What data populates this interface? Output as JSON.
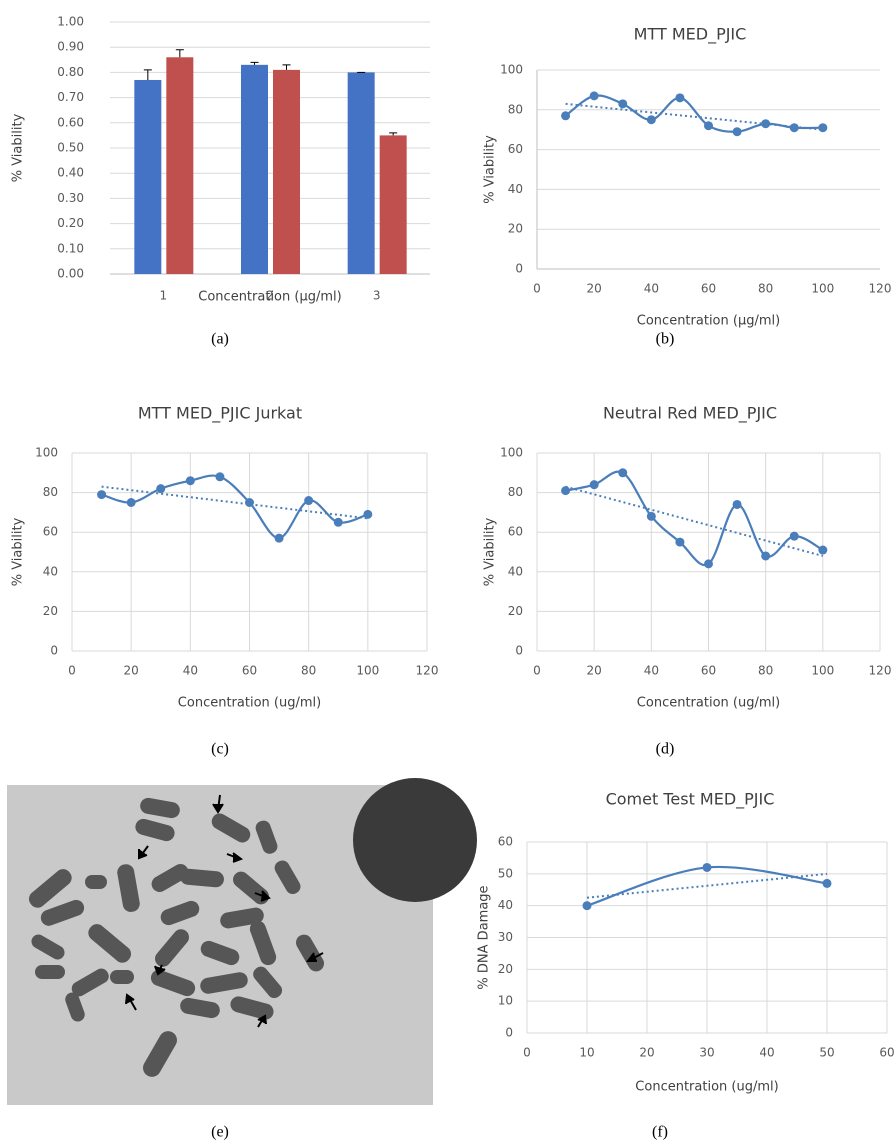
{
  "chart_data": [
    {
      "type": "bar",
      "categories": [
        "1",
        "2",
        "3"
      ],
      "series": [
        {
          "color": "#4472c4",
          "values": [
            0.77,
            0.83,
            0.8
          ],
          "errors": [
            0.04,
            0.01,
            0.0
          ]
        },
        {
          "color": "#c0504d",
          "values": [
            0.86,
            0.81,
            0.55
          ],
          "errors": [
            0.03,
            0.02,
            0.01
          ]
        }
      ],
      "ylim": [
        0,
        1
      ],
      "yticks": [
        {
          "value": 0,
          "label": "0.00"
        },
        {
          "value": 0.1,
          "label": "0.10"
        },
        {
          "value": 0.2,
          "label": "0.20"
        },
        {
          "value": 0.3,
          "label": "0.30"
        },
        {
          "value": 0.4,
          "label": "0.40"
        },
        {
          "value": 0.5,
          "label": "0.50"
        },
        {
          "value": 0.6,
          "label": "0.60"
        },
        {
          "value": 0.7,
          "label": "0.70"
        },
        {
          "value": 0.8,
          "label": "0.80"
        },
        {
          "value": 0.9,
          "label": "0.90"
        },
        {
          "value": 1,
          "label": "1.00"
        }
      ],
      "grid": true,
      "xlabel": "Concentration (µg/ml)",
      "ylabel": "% Viability",
      "caption": "(a)"
    },
    {
      "type": "line",
      "title": "MTT MED_PJIC",
      "color": "#4a7ebb",
      "x": [
        10,
        20,
        30,
        40,
        50,
        60,
        70,
        80,
        90,
        100
      ],
      "values": [
        77,
        87,
        83,
        75,
        86,
        72,
        69,
        73,
        71,
        71
      ],
      "trendline": {
        "x": [
          10,
          100
        ],
        "values": [
          83,
          70
        ]
      },
      "xlim": [
        0,
        120
      ],
      "xticks": [
        0,
        20,
        40,
        60,
        80,
        100,
        120
      ],
      "ylim": [
        0,
        100
      ],
      "yticks": [
        0,
        20,
        40,
        60,
        80,
        100
      ],
      "grid": true,
      "xgrid": false,
      "xlabel": "Concentration (µg/ml)",
      "ylabel": "% Viability",
      "caption": "(b)"
    },
    {
      "type": "line",
      "title": "MTT MED_PJIC Jurkat",
      "color": "#4a7ebb",
      "x": [
        10,
        20,
        30,
        40,
        50,
        60,
        70,
        80,
        90,
        100
      ],
      "values": [
        79,
        75,
        82,
        86,
        88,
        75,
        57,
        76,
        65,
        69
      ],
      "trendline": {
        "x": [
          10,
          100
        ],
        "values": [
          83,
          67
        ]
      },
      "xlim": [
        0,
        120
      ],
      "xticks": [
        0,
        20,
        40,
        60,
        80,
        100,
        120
      ],
      "ylim": [
        0,
        100
      ],
      "yticks": [
        0,
        20,
        40,
        60,
        80,
        100
      ],
      "grid": true,
      "xgrid": true,
      "xlabel": "Concentration (ug/ml)",
      "ylabel": "% Viability",
      "caption": "(c)"
    },
    {
      "type": "line",
      "title": "Neutral Red MED_PJIC",
      "color": "#4a7ebb",
      "x": [
        10,
        20,
        30,
        40,
        50,
        60,
        70,
        80,
        90,
        100
      ],
      "values": [
        81,
        84,
        90,
        68,
        55,
        44,
        74,
        48,
        58,
        51
      ],
      "trendline": {
        "x": [
          10,
          100
        ],
        "values": [
          83,
          48
        ]
      },
      "xlim": [
        0,
        120
      ],
      "xticks": [
        0,
        20,
        40,
        60,
        80,
        100,
        120
      ],
      "ylim": [
        0,
        100
      ],
      "yticks": [
        0,
        20,
        40,
        60,
        80,
        100
      ],
      "grid": true,
      "xgrid": true,
      "xlabel": "Concentration (ug/ml)",
      "ylabel": "% Viability",
      "caption": "(d)"
    },
    {
      "type": "line",
      "title": "Comet Test MED_PJIC",
      "color": "#4a7ebb",
      "x": [
        10,
        30,
        50
      ],
      "values": [
        40,
        52,
        47
      ],
      "trendline": {
        "x": [
          10,
          50
        ],
        "values": [
          42.5,
          50
        ]
      },
      "xlim": [
        0,
        60
      ],
      "xticks": [
        0,
        10,
        20,
        30,
        40,
        50,
        60
      ],
      "ylim": [
        0,
        60
      ],
      "yticks": [
        0,
        10,
        20,
        30,
        40,
        50,
        60
      ],
      "grid": true,
      "xgrid": true,
      "xlabel": "Concentration (ug/ml)",
      "ylabel": "% DNA Damage",
      "caption": "(f)"
    }
  ],
  "image": {
    "caption": "(e)"
  }
}
